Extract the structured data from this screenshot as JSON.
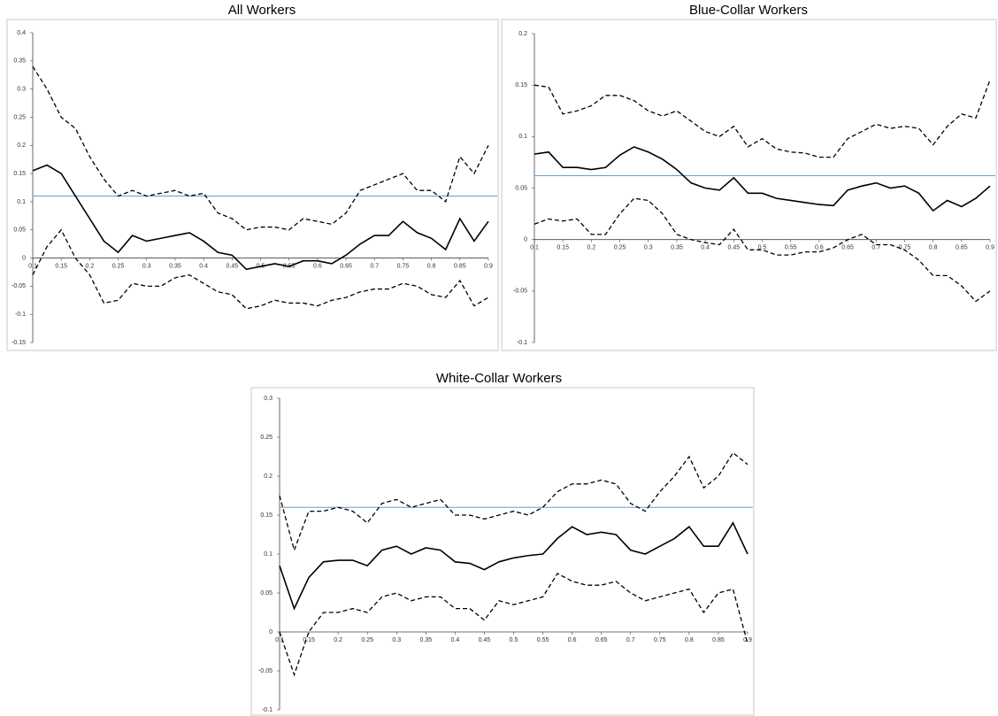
{
  "chart_data": [
    {
      "type": "line",
      "title": "All Workers",
      "x": [
        0.1,
        0.125,
        0.15,
        0.175,
        0.2,
        0.225,
        0.25,
        0.275,
        0.3,
        0.325,
        0.35,
        0.375,
        0.4,
        0.425,
        0.45,
        0.475,
        0.5,
        0.525,
        0.55,
        0.575,
        0.6,
        0.625,
        0.65,
        0.675,
        0.7,
        0.725,
        0.75,
        0.775,
        0.8,
        0.825,
        0.85,
        0.875,
        0.9
      ],
      "series": [
        {
          "color": "#000000",
          "dash": "solid",
          "values": [
            0.155,
            0.165,
            0.15,
            0.11,
            0.07,
            0.03,
            0.01,
            0.04,
            0.03,
            0.035,
            0.04,
            0.045,
            0.03,
            0.01,
            0.005,
            -0.02,
            -0.015,
            -0.01,
            -0.015,
            -0.005,
            -0.005,
            -0.01,
            0.005,
            0.025,
            0.04,
            0.04,
            0.065,
            0.045,
            0.035,
            0.015,
            0.07,
            0.03,
            0.065
          ]
        },
        {
          "color": "#000000",
          "dash": "dashed",
          "values": [
            0.34,
            0.3,
            0.25,
            0.23,
            0.18,
            0.14,
            0.11,
            0.12,
            0.11,
            0.115,
            0.12,
            0.11,
            0.115,
            0.08,
            0.07,
            0.05,
            0.055,
            0.055,
            0.05,
            0.07,
            0.065,
            0.06,
            0.08,
            0.12,
            0.13,
            0.14,
            0.15,
            0.12,
            0.12,
            0.1,
            0.18,
            0.15,
            0.2
          ]
        },
        {
          "color": "#000000",
          "dash": "dashed",
          "values": [
            -0.03,
            0.02,
            0.05,
            0.0,
            -0.03,
            -0.08,
            -0.075,
            -0.045,
            -0.05,
            -0.05,
            -0.035,
            -0.03,
            -0.045,
            -0.06,
            -0.065,
            -0.09,
            -0.085,
            -0.075,
            -0.08,
            -0.08,
            -0.085,
            -0.075,
            -0.07,
            -0.06,
            -0.055,
            -0.055,
            -0.045,
            -0.05,
            -0.065,
            -0.07,
            -0.04,
            -0.085,
            -0.07
          ]
        }
      ],
      "hline": {
        "value": 0.11,
        "color": "#6a9bd1"
      },
      "xlim": [
        0.1,
        0.9
      ],
      "xticks": [
        0.1,
        0.15,
        0.2,
        0.25,
        0.3,
        0.35,
        0.4,
        0.45,
        0.5,
        0.55,
        0.6,
        0.65,
        0.7,
        0.75,
        0.8,
        0.85,
        0.9
      ],
      "ylim": [
        -0.15,
        0.4
      ],
      "yticks": [
        -0.15,
        -0.1,
        -0.05,
        0,
        0.05,
        0.1,
        0.15,
        0.2,
        0.25,
        0.3,
        0.35,
        0.4
      ],
      "grid": false
    },
    {
      "type": "line",
      "title": "Blue-Collar Workers",
      "x": [
        0.1,
        0.125,
        0.15,
        0.175,
        0.2,
        0.225,
        0.25,
        0.275,
        0.3,
        0.325,
        0.35,
        0.375,
        0.4,
        0.425,
        0.45,
        0.475,
        0.5,
        0.525,
        0.55,
        0.575,
        0.6,
        0.625,
        0.65,
        0.675,
        0.7,
        0.725,
        0.75,
        0.775,
        0.8,
        0.825,
        0.85,
        0.875,
        0.9
      ],
      "series": [
        {
          "color": "#000000",
          "dash": "solid",
          "values": [
            0.083,
            0.085,
            0.07,
            0.07,
            0.068,
            0.07,
            0.082,
            0.09,
            0.085,
            0.078,
            0.068,
            0.055,
            0.05,
            0.048,
            0.06,
            0.045,
            0.045,
            0.04,
            0.038,
            0.036,
            0.034,
            0.033,
            0.048,
            0.052,
            0.055,
            0.05,
            0.052,
            0.045,
            0.028,
            0.038,
            0.032,
            0.04,
            0.052
          ]
        },
        {
          "color": "#000000",
          "dash": "dashed",
          "values": [
            0.15,
            0.148,
            0.122,
            0.125,
            0.13,
            0.14,
            0.14,
            0.135,
            0.125,
            0.12,
            0.125,
            0.115,
            0.105,
            0.1,
            0.11,
            0.09,
            0.098,
            0.088,
            0.085,
            0.084,
            0.08,
            0.08,
            0.098,
            0.105,
            0.112,
            0.108,
            0.11,
            0.108,
            0.092,
            0.11,
            0.122,
            0.118,
            0.155
          ]
        },
        {
          "color": "#000000",
          "dash": "dashed",
          "values": [
            0.015,
            0.02,
            0.018,
            0.02,
            0.005,
            0.005,
            0.025,
            0.04,
            0.038,
            0.025,
            0.005,
            0.0,
            -0.003,
            -0.005,
            0.01,
            -0.01,
            -0.01,
            -0.015,
            -0.015,
            -0.012,
            -0.012,
            -0.008,
            0.0,
            0.005,
            -0.005,
            -0.005,
            -0.01,
            -0.02,
            -0.035,
            -0.035,
            -0.045,
            -0.06,
            -0.05
          ]
        }
      ],
      "hline": {
        "value": 0.062,
        "color": "#6a9bd1"
      },
      "xlim": [
        0.1,
        0.9
      ],
      "xticks": [
        0.1,
        0.15,
        0.2,
        0.25,
        0.3,
        0.35,
        0.4,
        0.45,
        0.5,
        0.55,
        0.6,
        0.65,
        0.7,
        0.75,
        0.8,
        0.85,
        0.9
      ],
      "ylim": [
        -0.1,
        0.2
      ],
      "yticks": [
        -0.1,
        -0.05,
        0,
        0.05,
        0.1,
        0.15,
        0.2
      ],
      "grid": false
    },
    {
      "type": "line",
      "title": "White-Collar Workers",
      "x": [
        0.1,
        0.125,
        0.15,
        0.175,
        0.2,
        0.225,
        0.25,
        0.275,
        0.3,
        0.325,
        0.35,
        0.375,
        0.4,
        0.425,
        0.45,
        0.475,
        0.5,
        0.525,
        0.55,
        0.575,
        0.6,
        0.625,
        0.65,
        0.675,
        0.7,
        0.725,
        0.75,
        0.775,
        0.8,
        0.825,
        0.85,
        0.875,
        0.9
      ],
      "series": [
        {
          "color": "#000000",
          "dash": "solid",
          "values": [
            0.085,
            0.03,
            0.07,
            0.09,
            0.092,
            0.092,
            0.085,
            0.105,
            0.11,
            0.1,
            0.108,
            0.105,
            0.09,
            0.088,
            0.08,
            0.09,
            0.095,
            0.098,
            0.1,
            0.12,
            0.135,
            0.125,
            0.128,
            0.125,
            0.105,
            0.1,
            0.11,
            0.12,
            0.135,
            0.11,
            0.11,
            0.14,
            0.1
          ]
        },
        {
          "color": "#000000",
          "dash": "dashed",
          "values": [
            0.175,
            0.105,
            0.155,
            0.155,
            0.16,
            0.155,
            0.14,
            0.165,
            0.17,
            0.16,
            0.165,
            0.17,
            0.15,
            0.15,
            0.145,
            0.15,
            0.155,
            0.15,
            0.16,
            0.18,
            0.19,
            0.19,
            0.195,
            0.19,
            0.165,
            0.155,
            0.18,
            0.2,
            0.225,
            0.185,
            0.2,
            0.23,
            0.215
          ]
        },
        {
          "color": "#000000",
          "dash": "dashed",
          "values": [
            0.0,
            -0.055,
            0.0,
            0.025,
            0.025,
            0.03,
            0.025,
            0.045,
            0.05,
            0.04,
            0.045,
            0.045,
            0.03,
            0.03,
            0.015,
            0.04,
            0.035,
            0.04,
            0.045,
            0.075,
            0.065,
            0.06,
            0.06,
            0.065,
            0.05,
            0.04,
            0.045,
            0.05,
            0.055,
            0.025,
            0.05,
            0.055,
            -0.015
          ]
        }
      ],
      "hline": {
        "value": 0.16,
        "color": "#6a9bd1"
      },
      "xlim": [
        0.1,
        0.9
      ],
      "xticks": [
        0.1,
        0.15,
        0.2,
        0.25,
        0.3,
        0.35,
        0.4,
        0.45,
        0.5,
        0.55,
        0.6,
        0.65,
        0.7,
        0.75,
        0.8,
        0.85,
        0.9
      ],
      "ylim": [
        -0.1,
        0.3
      ],
      "yticks": [
        -0.1,
        -0.05,
        0,
        0.05,
        0.1,
        0.15,
        0.2,
        0.25,
        0.3
      ],
      "grid": false
    }
  ]
}
